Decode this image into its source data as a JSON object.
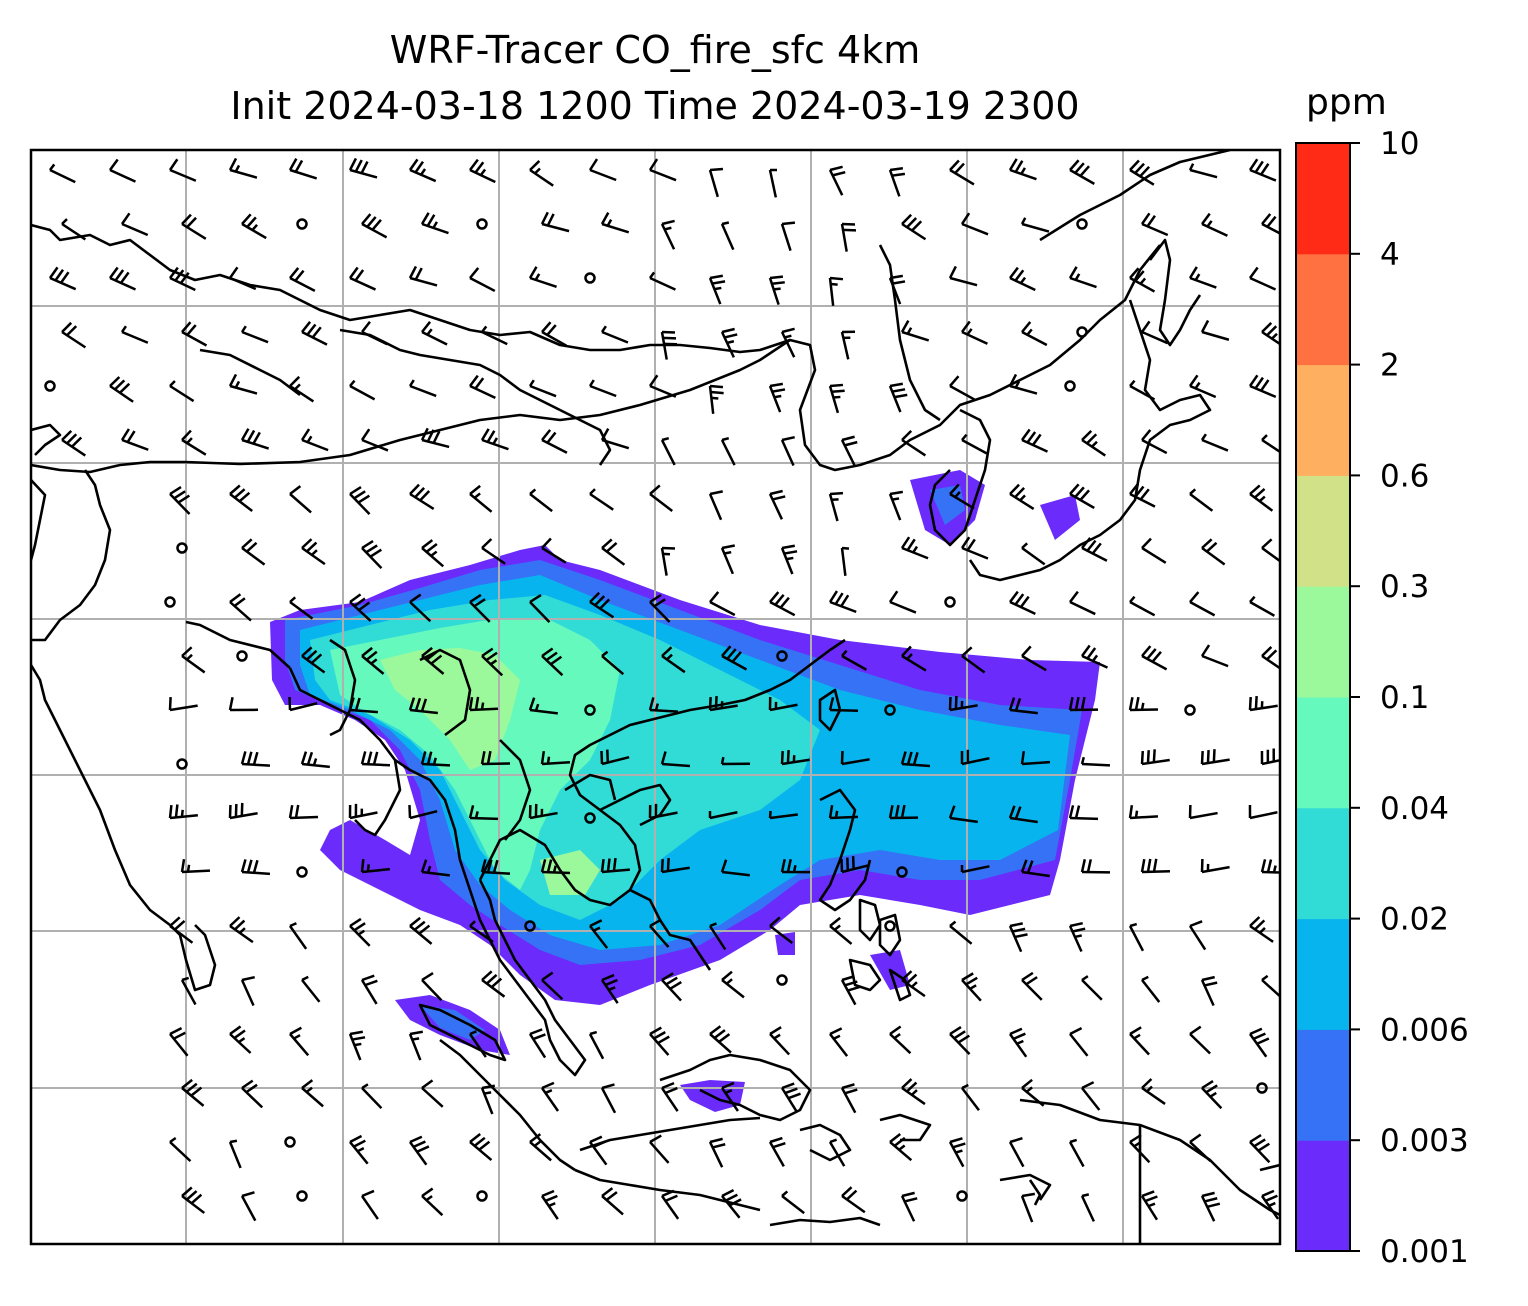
{
  "title": {
    "line1": "WRF-Tracer CO_fire_sfc 4km",
    "line2": "Init 2024-03-18 1200 Time 2024-03-19 2300"
  },
  "colorbar": {
    "unit": "ppm",
    "levels": [
      "0.001",
      "0.003",
      "0.006",
      "0.02",
      "0.04",
      "0.1",
      "0.3",
      "0.6",
      "2",
      "4",
      "10"
    ],
    "colors": [
      "#6a2bfb",
      "#3672f5",
      "#08b4ee",
      "#31dcd6",
      "#66f9bd",
      "#9cf99b",
      "#d1e187",
      "#feaf5f",
      "#ff7140",
      "#ff2b16"
    ]
  },
  "map": {
    "field": "CO_fire_sfc",
    "overlays": [
      "coastlines",
      "country-borders",
      "gridlines",
      "wind-barbs"
    ],
    "gridline_color": "#b0b0b0"
  }
}
